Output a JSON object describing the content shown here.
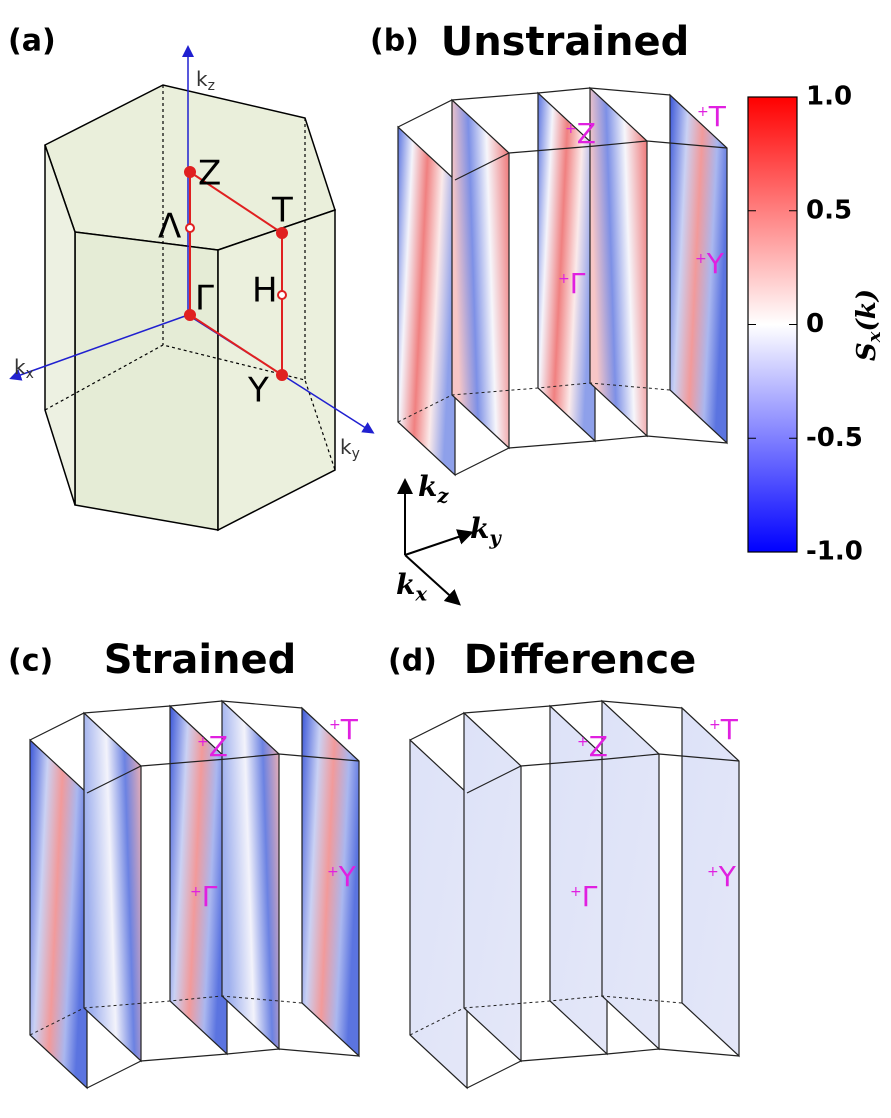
{
  "panels": [
    {
      "label": "(a)",
      "points": [
        "Z",
        "Λ",
        "T",
        "H",
        "Γ",
        "Y"
      ],
      "axes": [
        {
          "symbol": "k",
          "sub": "z"
        },
        {
          "symbol": "k",
          "sub": "x"
        },
        {
          "symbol": "k",
          "sub": "y"
        }
      ]
    },
    {
      "label": "(b)",
      "title": "Unstrained",
      "points": [
        "Z",
        "T",
        "Γ",
        "Y"
      ]
    },
    {
      "label": "(c)",
      "title": "Strained",
      "points": [
        "Z",
        "T",
        "Γ",
        "Y"
      ]
    },
    {
      "label": "(d)",
      "title": "Difference",
      "points": [
        "Z",
        "T",
        "Γ",
        "Y"
      ]
    }
  ],
  "axes_triad": [
    {
      "symbol": "k",
      "sub": "z"
    },
    {
      "symbol": "k",
      "sub": "y"
    },
    {
      "symbol": "k",
      "sub": "x"
    }
  ],
  "colorbar": {
    "label": {
      "symbol": "S",
      "sub": "x",
      "arg": "(k)"
    },
    "lim": [
      -1,
      1
    ],
    "ticks": [
      {
        "value": 1,
        "label": "1.0"
      },
      {
        "value": 0.5,
        "label": "0.5"
      },
      0,
      {
        "value": -0.5,
        "label": "-0.5"
      },
      {
        "value": -1,
        "label": "-1.0"
      }
    ]
  }
}
